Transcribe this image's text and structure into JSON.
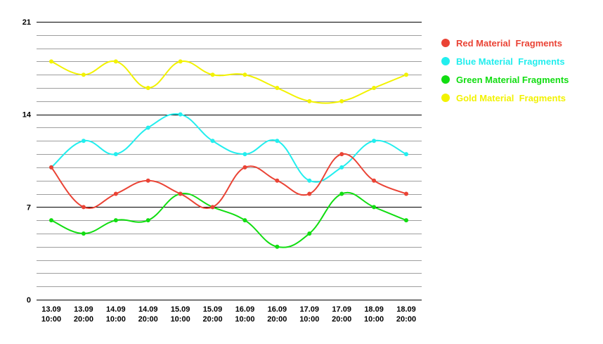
{
  "chart_data": {
    "type": "line",
    "title": "",
    "xlabel": "",
    "ylabel": "",
    "ylim": [
      0,
      21
    ],
    "yticks": [
      "0",
      "7",
      "14",
      "21"
    ],
    "grid": true,
    "legend_position": "right",
    "categories": [
      [
        "13.09",
        "10:00"
      ],
      [
        "13.09",
        "20:00"
      ],
      [
        "14.09",
        "10:00"
      ],
      [
        "14.09",
        "20:00"
      ],
      [
        "15.09",
        "10:00"
      ],
      [
        "15.09",
        "20:00"
      ],
      [
        "16.09",
        "10:00"
      ],
      [
        "16.09",
        "20:00"
      ],
      [
        "17.09",
        "10:00"
      ],
      [
        "17.09",
        "20:00"
      ],
      [
        "18.09",
        "10:00"
      ],
      [
        "18.09",
        "20:00"
      ]
    ],
    "series": [
      {
        "name": "Red Material  Fragments",
        "color": "#ea4335",
        "values": [
          10,
          7,
          8,
          9,
          8,
          7,
          10,
          9,
          8,
          11,
          9,
          8
        ]
      },
      {
        "name": "Blue Material  Fragments",
        "color": "#22eeee",
        "values": [
          10,
          12,
          11,
          13,
          14,
          12,
          11,
          12,
          9,
          10,
          12,
          11
        ]
      },
      {
        "name": "Green Material Fragments",
        "color": "#11dd11",
        "values": [
          6,
          5,
          6,
          6,
          8,
          7,
          6,
          4,
          5,
          8,
          7,
          6
        ]
      },
      {
        "name": "Gold Material  Fragments",
        "color": "#f2f200",
        "values": [
          18,
          17,
          18,
          16,
          18,
          17,
          17,
          16,
          15,
          15,
          16,
          17
        ]
      }
    ]
  }
}
